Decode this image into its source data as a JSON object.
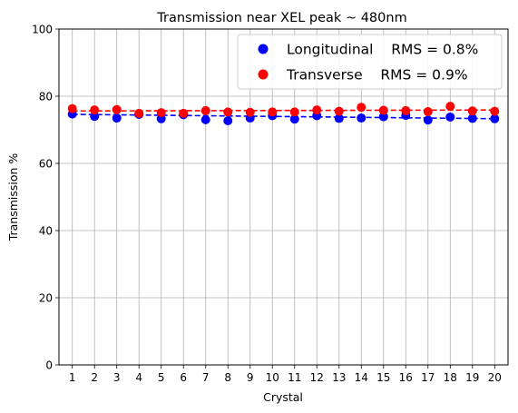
{
  "chart_data": {
    "type": "scatter",
    "title": "Transmission near XEL peak ~ 480nm",
    "xlabel": "Crystal",
    "ylabel": "Transmission %",
    "x": [
      1,
      2,
      3,
      4,
      5,
      6,
      7,
      8,
      9,
      10,
      11,
      12,
      13,
      14,
      15,
      16,
      17,
      18,
      19,
      20
    ],
    "xlim": [
      0.4,
      20.6
    ],
    "ylim": [
      0,
      100
    ],
    "yticks": [
      0,
      20,
      40,
      60,
      80,
      100
    ],
    "grid": true,
    "legend": "upper-right",
    "series": [
      {
        "name": "Longitudinal    RMS = 0.8%",
        "color": "#0000ff",
        "values": [
          74.7,
          74.0,
          73.5,
          74.6,
          73.3,
          74.5,
          73.0,
          72.7,
          73.5,
          74.2,
          73.2,
          74.2,
          73.4,
          73.5,
          73.9,
          74.3,
          72.9,
          73.8,
          73.4,
          73.3
        ],
        "fit": [
          74.6,
          73.3
        ]
      },
      {
        "name": "Transverse    RMS = 0.9%",
        "color": "#ff0000",
        "values": [
          76.3,
          75.9,
          76.0,
          74.9,
          75.1,
          74.9,
          75.7,
          75.3,
          75.2,
          75.3,
          75.3,
          75.9,
          75.5,
          76.7,
          75.8,
          75.7,
          75.4,
          77.0,
          75.6,
          75.5
        ],
        "fit": [
          75.6,
          75.9
        ]
      }
    ]
  }
}
